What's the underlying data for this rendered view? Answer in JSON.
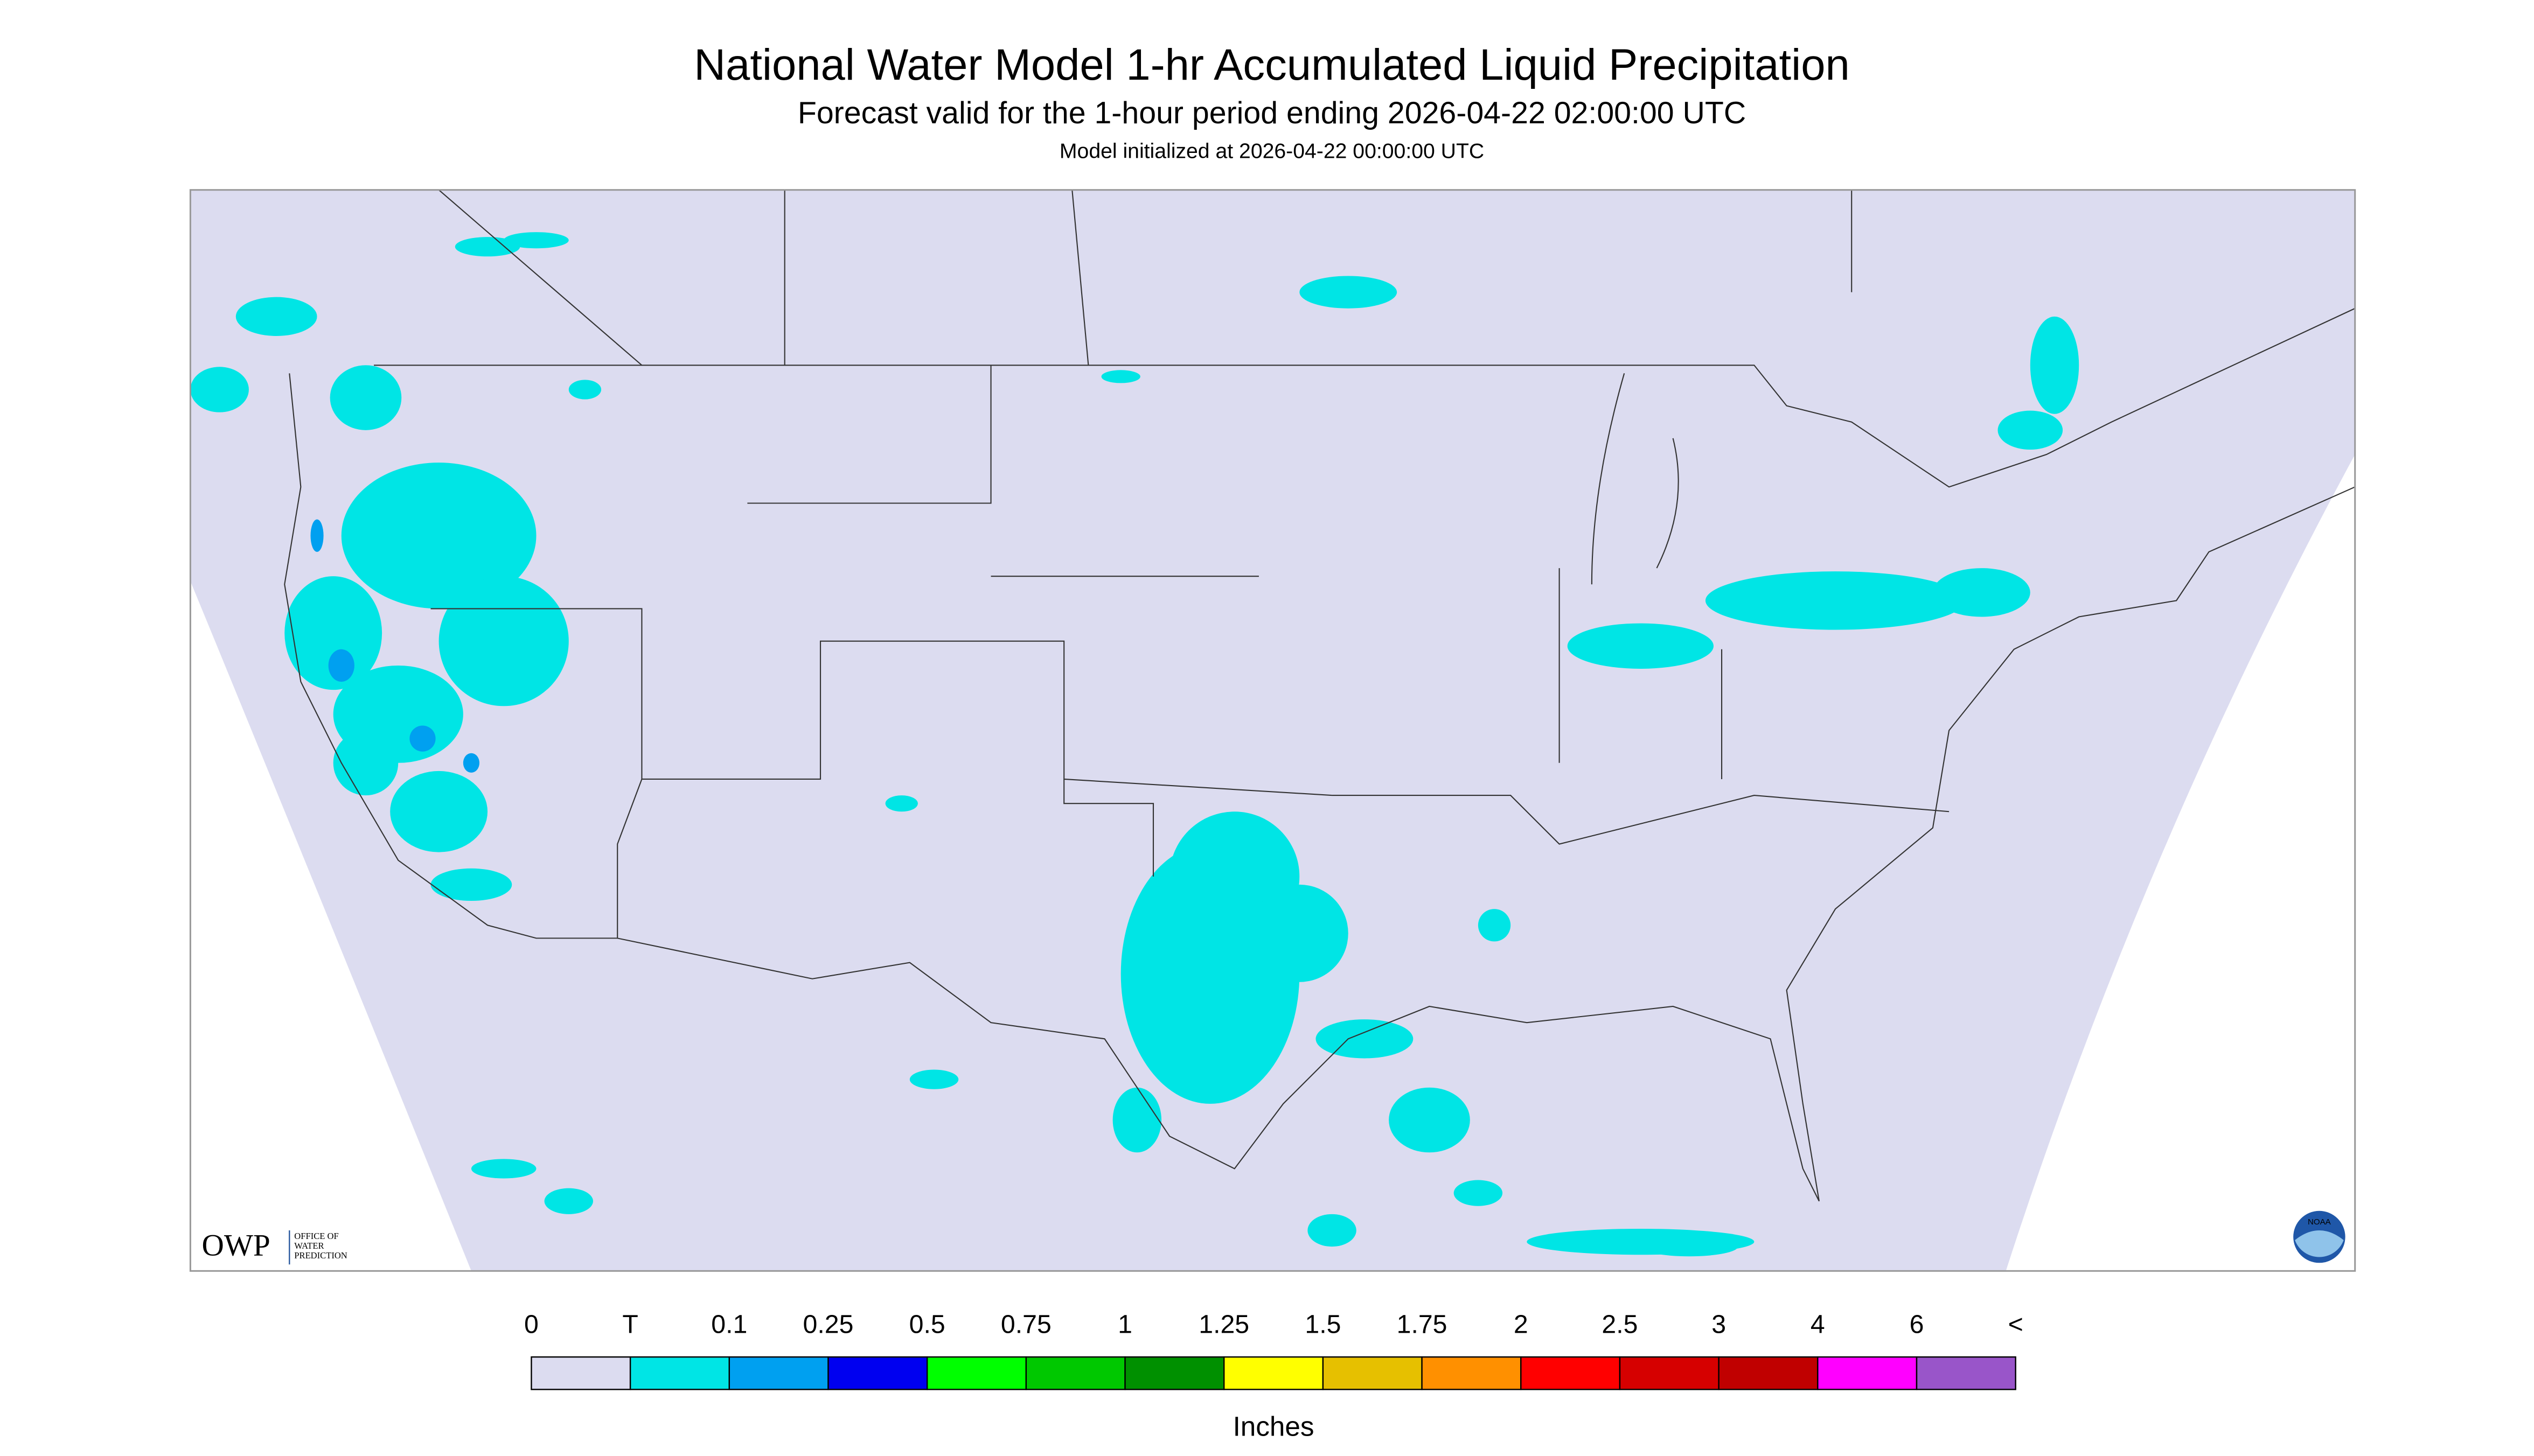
{
  "header": {
    "title": "National Water Model 1-hr Accumulated Liquid Precipitation",
    "subtitle": "Forecast valid for the 1-hour period ending 2026-04-22 02:00:00 UTC",
    "init": "Model initialized at 2026-04-22 00:00:00 UTC"
  },
  "map": {
    "background": "#dcdcf0",
    "precip_color": "#00e5e5",
    "heavy_color": "#00a0f0"
  },
  "logos": {
    "owp": "OWP",
    "owp_lines": [
      "OFFICE OF",
      "WATER",
      "PREDICTION"
    ],
    "noaa": "NOAA"
  },
  "legend": {
    "labels": [
      "0",
      "T",
      "0.1",
      "0.25",
      "0.5",
      "0.75",
      "1",
      "1.25",
      "1.5",
      "1.75",
      "2",
      "2.5",
      "3",
      "4",
      "6",
      "<"
    ],
    "colors": [
      "#dcdcf0",
      "#00e5e5",
      "#00a0f0",
      "#0000f0",
      "#00ff00",
      "#00c800",
      "#009000",
      "#ffff00",
      "#e6c000",
      "#ff9000",
      "#ff0000",
      "#d60000",
      "#c00000",
      "#ff00ff",
      "#9955c9"
    ],
    "units": "Inches"
  }
}
